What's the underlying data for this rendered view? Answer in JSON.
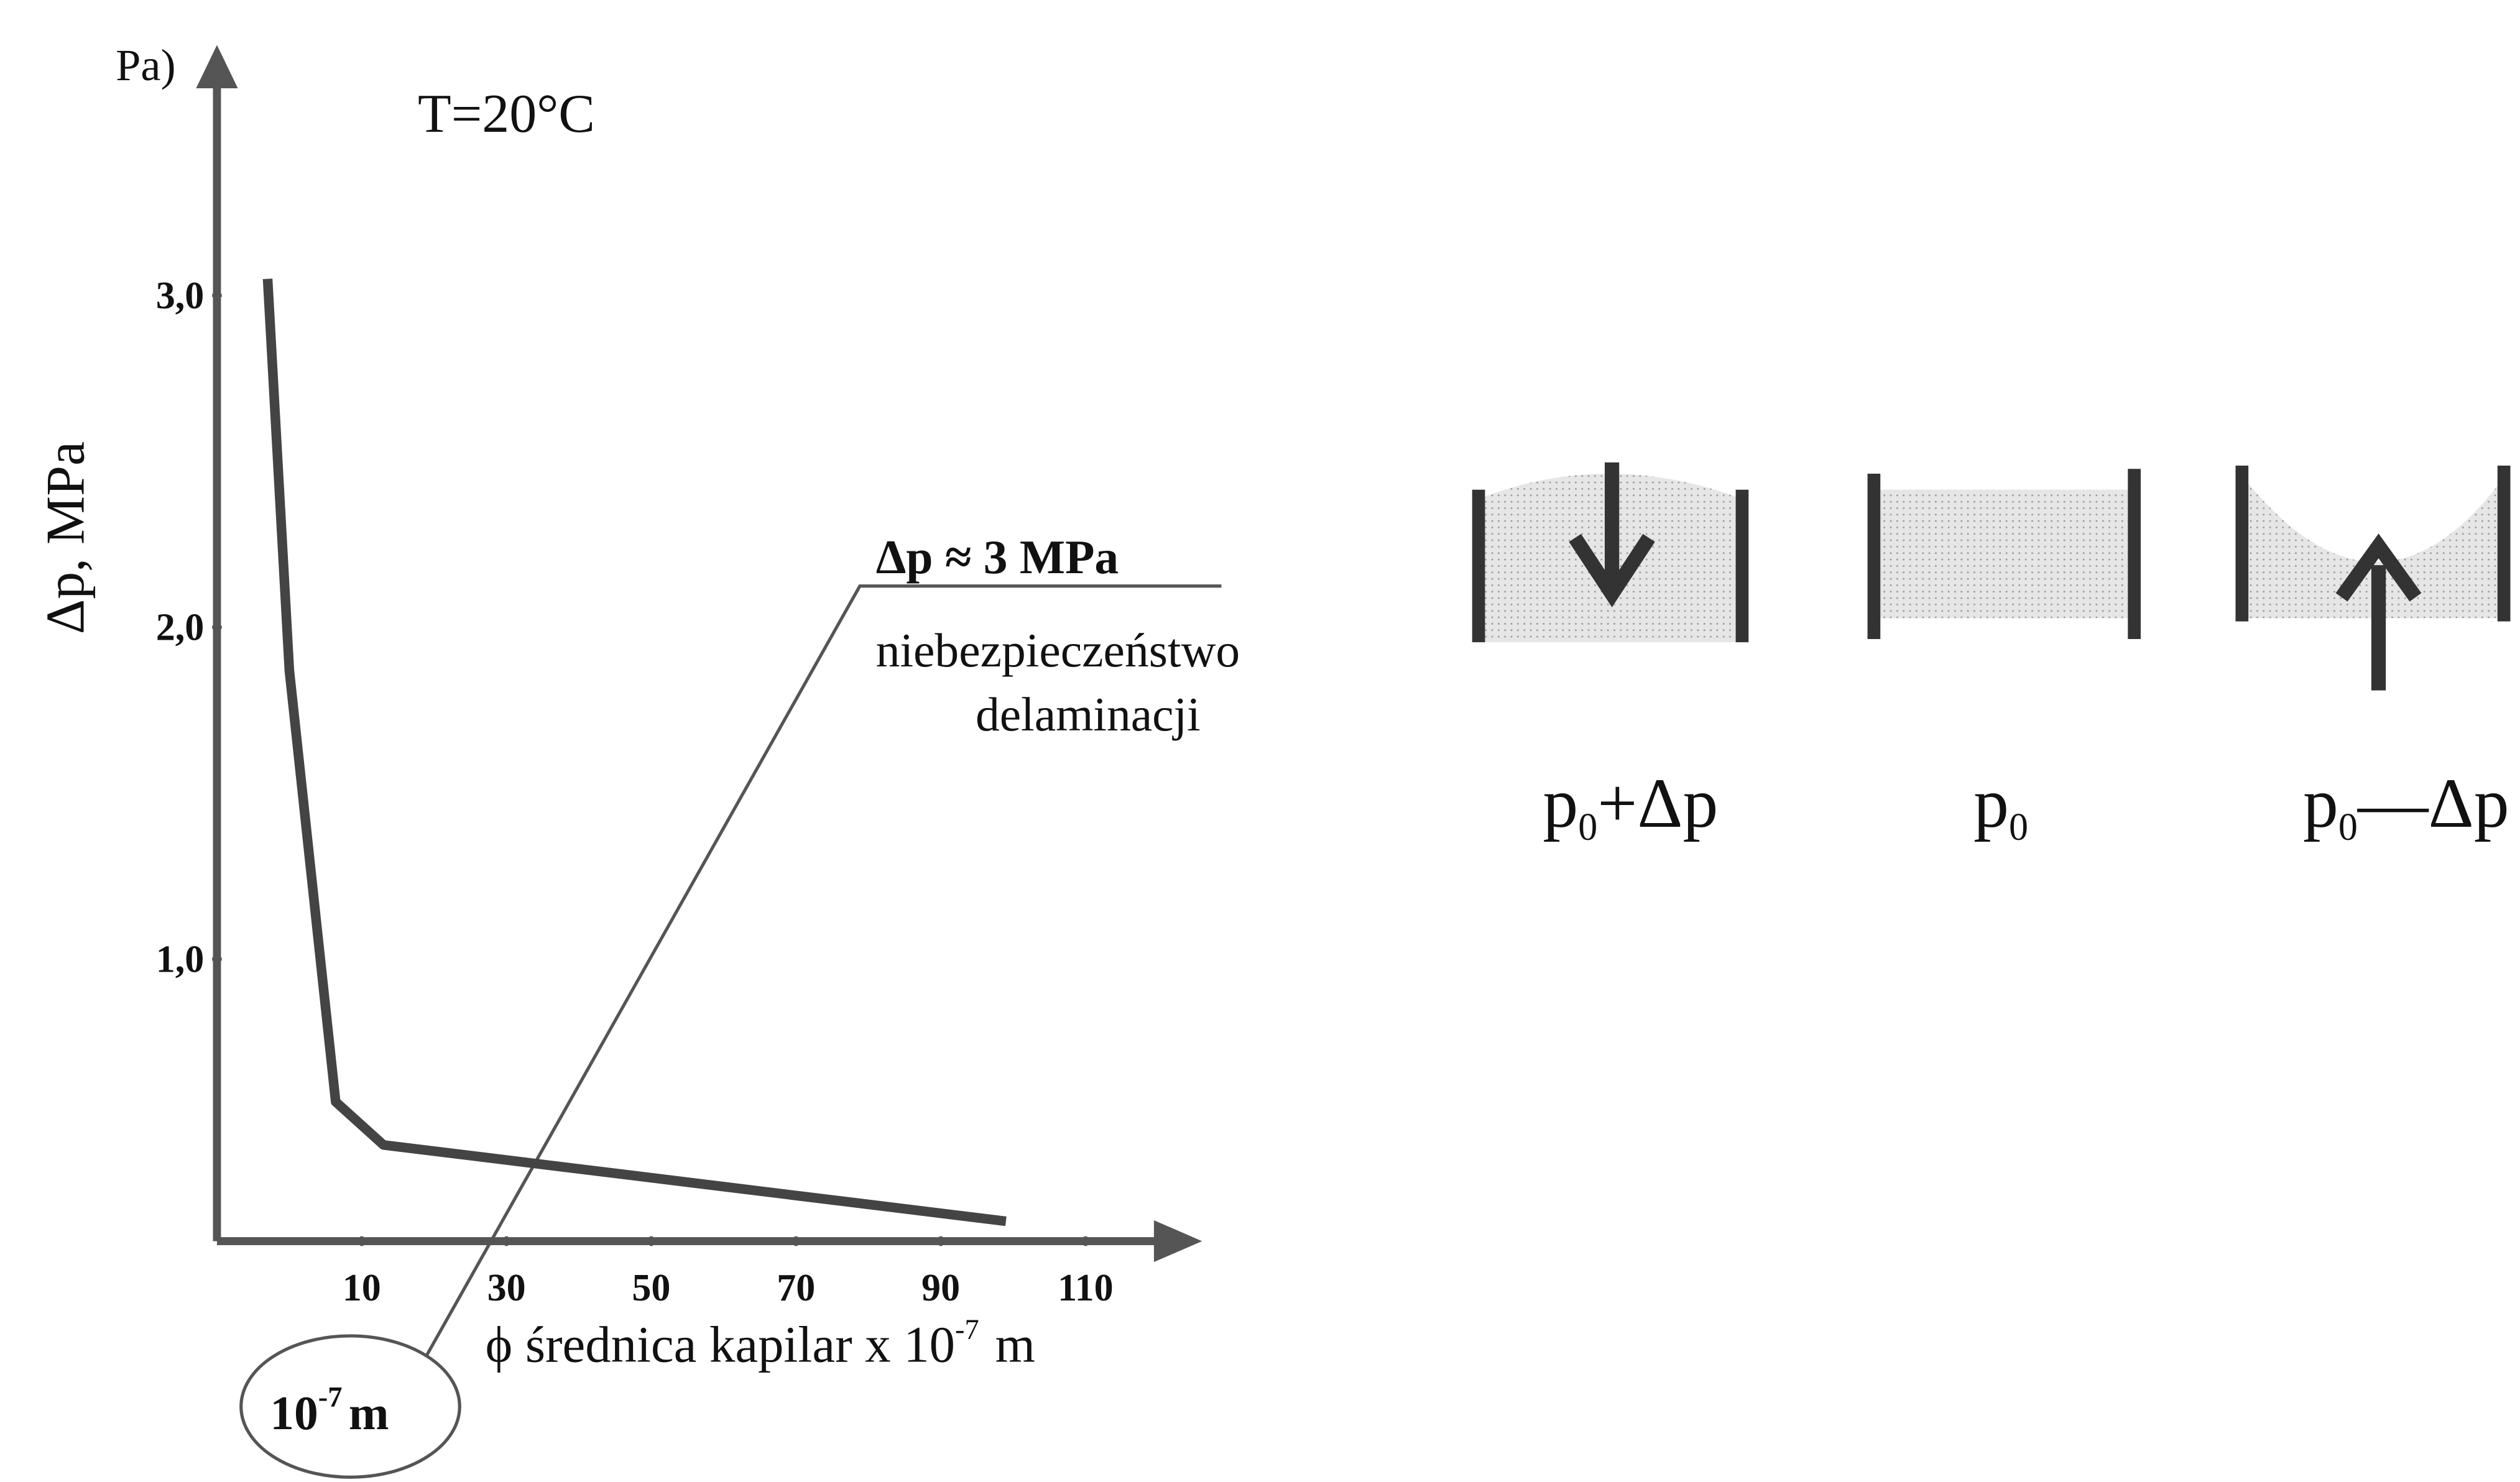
{
  "chart_data": {
    "type": "line",
    "cut_label": "Pa)",
    "y_label": "Δp, MPa",
    "x_label": [
      "ϕ średnica kapilar x 10",
      "-7",
      "m"
    ],
    "annotation_temperature": "T=20°C",
    "annotation_pressure": "Δp ≈ 3 MPa",
    "annotation_note": [
      "niebezpieczeństwo",
      "delaminacji"
    ],
    "circle_label": [
      "10",
      "-7",
      "m"
    ],
    "x": [
      -3,
      0,
      6.4,
      13,
      99
    ],
    "values": [
      3.05,
      1.87,
      0.57,
      0.44,
      0.21
    ],
    "color": "#444444",
    "xlim": [
      -10,
      125
    ],
    "ylim": [
      0.15,
      3.75
    ],
    "xticks": [
      10,
      30,
      50,
      70,
      90,
      110
    ],
    "yticks": [
      {
        "value": 1,
        "label": "1,0"
      },
      {
        "value": 2,
        "label": "2,0"
      },
      {
        "value": 3,
        "label": "3,0"
      }
    ],
    "grid": false,
    "diagram_labels": [
      [
        "p",
        "0",
        "+Δp"
      ],
      [
        "p",
        "0",
        ""
      ],
      [
        "p",
        "0",
        "—Δp"
      ]
    ]
  }
}
